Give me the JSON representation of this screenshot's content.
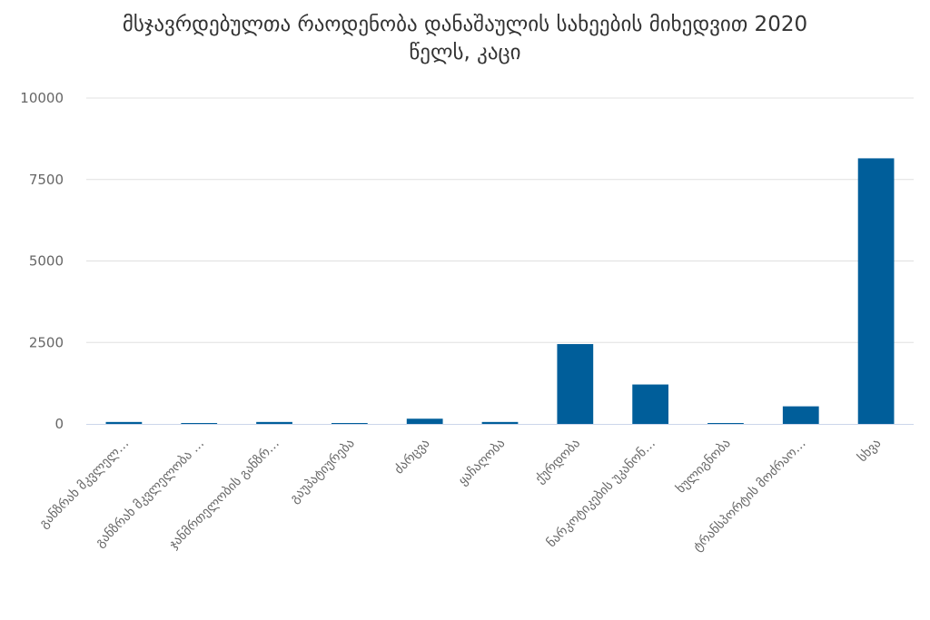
{
  "chart_data": {
    "type": "bar",
    "title_line1": "მსჯავრდებულთა რაოდენობა დანაშაულის სახეების მიხედვით 2020",
    "title_line2": "წელს, კაცი",
    "categories": [
      "განზრახ მკვლელ…",
      "განზრახ მკვლელობა …",
      "ჯანმრთელობის განზრ…",
      "გაუპატიურება",
      "ძარცვა",
      "ყაჩაღობა",
      "ქურდობა",
      "ნარკოტიკების უკანონ…",
      "ხულიგნობა",
      "ტრანსპორტის მოძრაო…",
      "სხვა"
    ],
    "values": [
      60,
      10,
      60,
      10,
      160,
      60,
      2450,
      1210,
      10,
      540,
      8150
    ],
    "ylim": [
      0,
      10000
    ],
    "yticks": [
      "0",
      "2500",
      "5000",
      "7500",
      "10000"
    ],
    "bar_color": "#005e9a",
    "grid": true
  }
}
